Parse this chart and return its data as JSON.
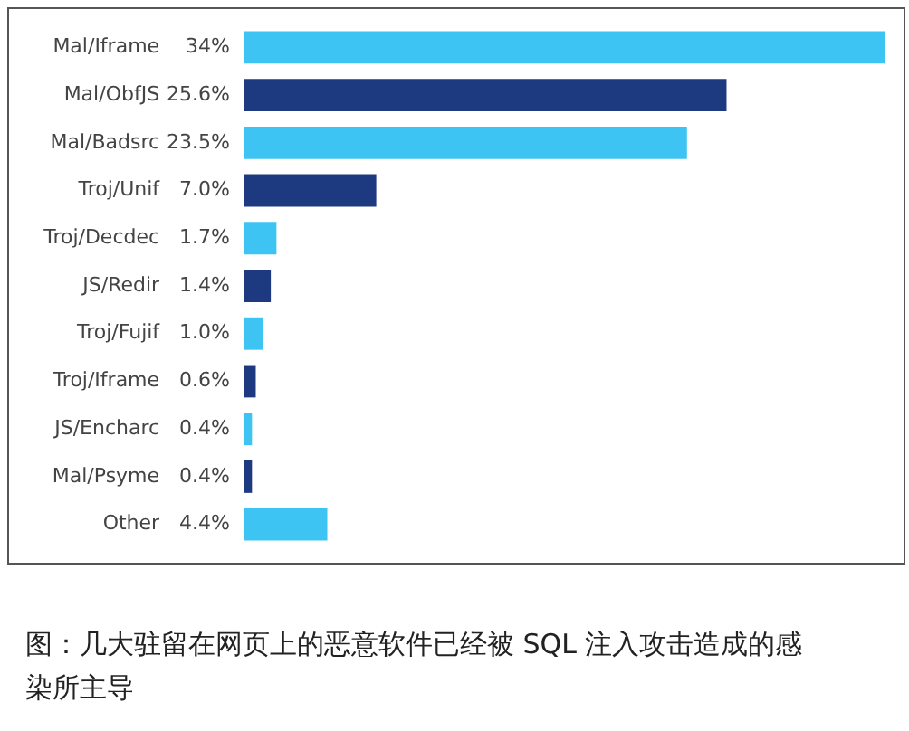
{
  "chart_data": {
    "type": "bar",
    "orientation": "horizontal",
    "categories": [
      "Mal/Iframe",
      "Mal/ObfJS",
      "Mal/Badsrc",
      "Troj/Unif",
      "Troj/Decdec",
      "JS/Redir",
      "Troj/Fujif",
      "Troj/Iframe",
      "JS/Encharc",
      "Mal/Psyme",
      "Other"
    ],
    "values": [
      34,
      25.6,
      23.5,
      7.0,
      1.7,
      1.4,
      1.0,
      0.6,
      0.4,
      0.4,
      4.4
    ],
    "value_labels": [
      "34%",
      "25.6%",
      "23.5%",
      "7.0%",
      "1.7%",
      "1.4%",
      "1.0%",
      "0.6%",
      "0.4%",
      "0.4%",
      "4.4%"
    ],
    "colors": [
      "#3ec4f2",
      "#1d3a80",
      "#3ec4f2",
      "#1d3a80",
      "#3ec4f2",
      "#1d3a80",
      "#3ec4f2",
      "#1d3a80",
      "#3ec4f2",
      "#1d3a80",
      "#3ec4f2"
    ],
    "legend": false,
    "annotations": [
      "图：几大驻留在网页上的恶意软件已经被 SQL 注入攻击造成的感染所主导"
    ]
  }
}
